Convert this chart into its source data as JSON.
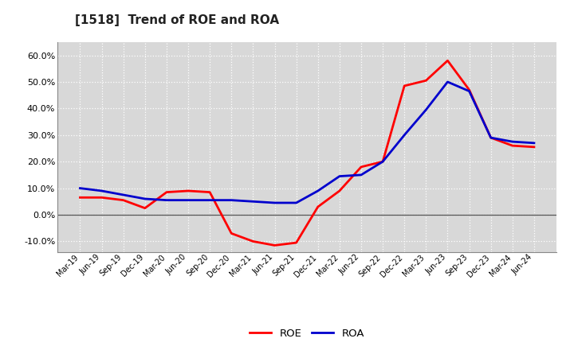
{
  "title": "[1518]  Trend of ROE and ROA",
  "x_labels": [
    "Mar-19",
    "Jun-19",
    "Sep-19",
    "Dec-19",
    "Mar-20",
    "Jun-20",
    "Sep-20",
    "Dec-20",
    "Mar-21",
    "Jun-21",
    "Sep-21",
    "Dec-21",
    "Mar-22",
    "Jun-22",
    "Sep-22",
    "Dec-22",
    "Mar-23",
    "Jun-23",
    "Sep-23",
    "Dec-23",
    "Mar-24",
    "Jun-24"
  ],
  "roe": [
    6.5,
    6.5,
    5.5,
    2.5,
    8.5,
    9.0,
    8.5,
    -7.0,
    -10.0,
    -11.5,
    -10.5,
    3.0,
    9.0,
    18.0,
    20.0,
    48.5,
    50.5,
    58.0,
    47.0,
    29.0,
    26.0,
    25.5
  ],
  "roa": [
    10.0,
    9.0,
    7.5,
    6.0,
    5.5,
    5.5,
    5.5,
    5.5,
    5.0,
    4.5,
    4.5,
    9.0,
    14.5,
    15.0,
    20.0,
    30.0,
    39.5,
    50.0,
    46.5,
    29.0,
    27.5,
    27.0
  ],
  "roe_color": "#ff0000",
  "roa_color": "#0000cd",
  "background_color": "#ffffff",
  "plot_bg_color": "#d8d8d8",
  "grid_color": "#ffffff",
  "ylim": [
    -14,
    65
  ],
  "yticks": [
    -10,
    0,
    10,
    20,
    30,
    40,
    50,
    60
  ],
  "title_fontsize": 11,
  "legend_labels": [
    "ROE",
    "ROA"
  ],
  "line_width": 2.0
}
